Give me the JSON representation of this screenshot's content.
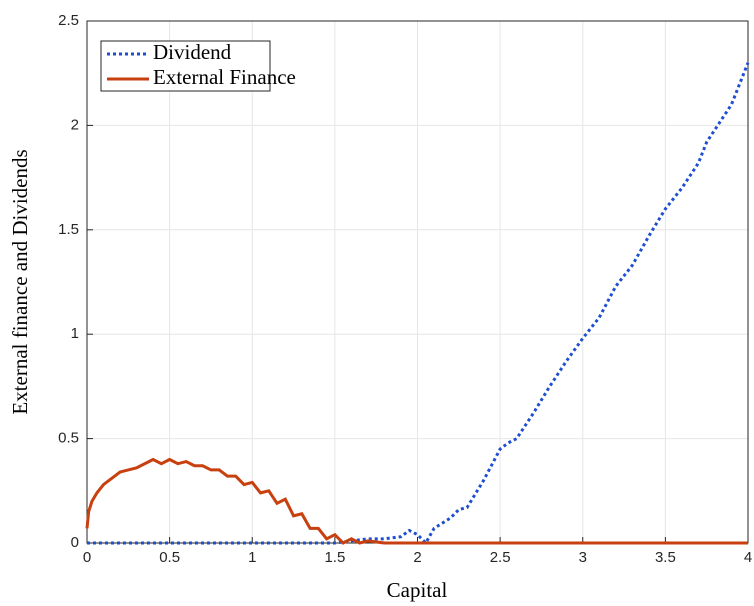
{
  "chart_data": {
    "type": "line",
    "xlabel": "Capital",
    "ylabel": "External finance and Dividends",
    "xlim": [
      0,
      4
    ],
    "xticks": [
      0,
      0.5,
      1,
      1.5,
      2,
      2.5,
      3,
      3.5,
      4
    ],
    "ylim": [
      0,
      2.5
    ],
    "yticks": [
      0,
      0.5,
      1,
      1.5,
      2,
      2.5
    ],
    "grid": true,
    "legend": "upper-left",
    "series": [
      {
        "name": "Dividend",
        "color": "#1f4fd1",
        "line_style": "dotted",
        "x": [
          0,
          0.5,
          1.0,
          1.5,
          1.6,
          1.7,
          1.8,
          1.9,
          1.95,
          2.0,
          2.05,
          2.1,
          2.2,
          2.25,
          2.3,
          2.4,
          2.5,
          2.55,
          2.6,
          2.7,
          2.8,
          2.9,
          3.0,
          3.1,
          3.2,
          3.3,
          3.4,
          3.5,
          3.6,
          3.7,
          3.75,
          3.8,
          3.9,
          4.0
        ],
        "values": [
          0,
          0,
          0,
          0,
          0.01,
          0.02,
          0.02,
          0.03,
          0.06,
          0.04,
          0,
          0.07,
          0.12,
          0.16,
          0.17,
          0.3,
          0.45,
          0.48,
          0.5,
          0.62,
          0.75,
          0.87,
          0.98,
          1.08,
          1.23,
          1.33,
          1.47,
          1.6,
          1.7,
          1.82,
          1.92,
          1.98,
          2.1,
          2.3
        ]
      },
      {
        "name": "External Finance",
        "color": "#c8400f",
        "line_style": "solid",
        "x": [
          0,
          0.01,
          0.03,
          0.06,
          0.1,
          0.15,
          0.2,
          0.3,
          0.4,
          0.45,
          0.5,
          0.55,
          0.6,
          0.65,
          0.7,
          0.75,
          0.8,
          0.85,
          0.9,
          0.95,
          1.0,
          1.05,
          1.1,
          1.15,
          1.2,
          1.25,
          1.3,
          1.35,
          1.4,
          1.45,
          1.5,
          1.55,
          1.6,
          1.65,
          1.7,
          1.8,
          2.0,
          4.0
        ],
        "values": [
          0.07,
          0.15,
          0.2,
          0.24,
          0.28,
          0.31,
          0.34,
          0.36,
          0.4,
          0.38,
          0.4,
          0.38,
          0.39,
          0.37,
          0.37,
          0.35,
          0.35,
          0.32,
          0.32,
          0.28,
          0.29,
          0.24,
          0.25,
          0.19,
          0.21,
          0.13,
          0.14,
          0.07,
          0.07,
          0.02,
          0.04,
          0,
          0.02,
          0,
          0.01,
          0,
          0,
          0
        ]
      }
    ]
  }
}
